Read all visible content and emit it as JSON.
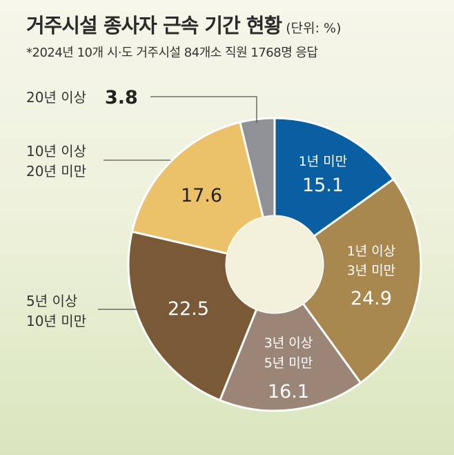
{
  "header": {
    "title": "거주시설 종사자 근속 기간 현황",
    "unit": "(단위: %)",
    "subtitle": "*2024년 10개 시·도 거주시설 84개소 직원 1768명 응답"
  },
  "chart_data": {
    "type": "pie",
    "donut": true,
    "categories": [
      "1년 미만",
      "1년 이상 3년 미만",
      "3년 이상 5년 미만",
      "5년 이상 10년 미만",
      "10년 이상 20년 미만",
      "20년 이상"
    ],
    "values": [
      15.1,
      24.9,
      16.1,
      22.5,
      17.6,
      3.8
    ],
    "colors": [
      "#0a5fa3",
      "#a8884f",
      "#9b8577",
      "#7a5a36",
      "#ebc26a",
      "#909097"
    ],
    "labels": {
      "s0": [
        "1년 미만"
      ],
      "s1": [
        "1년 이상",
        "3년 미만"
      ],
      "s2": [
        "3년 이상",
        "5년 미만"
      ],
      "s3": [
        "5년 이상",
        "10년 미만"
      ],
      "s4": [
        "10년 이상",
        "20년 미만"
      ],
      "s5": [
        "20년 이상"
      ]
    },
    "values_text": [
      "15.1",
      "24.9",
      "16.1",
      "22.5",
      "17.6",
      "3.8"
    ]
  }
}
